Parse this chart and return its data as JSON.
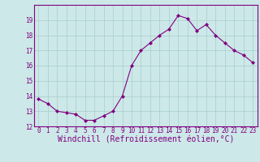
{
  "x": [
    0,
    1,
    2,
    3,
    4,
    5,
    6,
    7,
    8,
    9,
    10,
    11,
    12,
    13,
    14,
    15,
    16,
    17,
    18,
    19,
    20,
    21,
    22,
    23
  ],
  "y": [
    13.8,
    13.5,
    13.0,
    12.9,
    12.8,
    12.4,
    12.4,
    12.7,
    13.0,
    14.0,
    16.0,
    17.0,
    17.5,
    18.0,
    18.4,
    19.3,
    19.1,
    18.3,
    18.7,
    18.0,
    17.5,
    17.0,
    16.7,
    16.2
  ],
  "line_color": "#800080",
  "marker_color": "#800080",
  "background_color": "#cce8e8",
  "grid_color": "#aacccc",
  "xlabel": "Windchill (Refroidissement éolien,°C)",
  "ylim": [
    12,
    20
  ],
  "xlim": [
    -0.5,
    23.5
  ],
  "yticks": [
    12,
    13,
    14,
    15,
    16,
    17,
    18,
    19
  ],
  "xticks": [
    0,
    1,
    2,
    3,
    4,
    5,
    6,
    7,
    8,
    9,
    10,
    11,
    12,
    13,
    14,
    15,
    16,
    17,
    18,
    19,
    20,
    21,
    22,
    23
  ],
  "tick_fontsize": 5.5,
  "xlabel_fontsize": 7,
  "label_color": "#800080",
  "spine_color": "#800080",
  "linewidth": 0.8,
  "markersize": 2.0
}
